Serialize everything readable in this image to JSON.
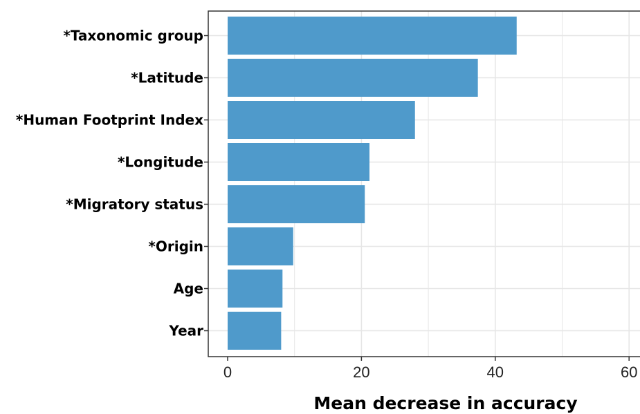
{
  "chart_data": {
    "type": "bar",
    "orientation": "horizontal",
    "categories": [
      "*Taxonomic group",
      "*Latitude",
      "*Human Footprint Index",
      "*Longitude",
      "*Migratory status",
      "*Origin",
      "Age",
      "Year"
    ],
    "values": [
      43.2,
      37.4,
      28.0,
      21.2,
      20.5,
      9.8,
      8.2,
      8.0
    ],
    "xlabel": "Mean decrease in accuracy",
    "ylabel": "",
    "xlim": [
      0,
      62
    ],
    "xticks": [
      0,
      20,
      40,
      60
    ],
    "grid": true,
    "bar_color": "#4f9acb"
  }
}
